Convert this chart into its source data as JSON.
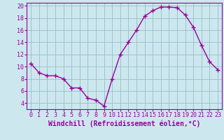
{
  "x": [
    0,
    1,
    2,
    3,
    4,
    5,
    6,
    7,
    8,
    9,
    10,
    11,
    12,
    13,
    14,
    15,
    16,
    17,
    18,
    19,
    20,
    21,
    22,
    23
  ],
  "y": [
    10.5,
    9.0,
    8.5,
    8.5,
    8.0,
    6.5,
    6.5,
    4.8,
    4.5,
    3.5,
    8.0,
    12.0,
    14.0,
    16.0,
    18.3,
    19.2,
    19.8,
    19.8,
    19.7,
    18.5,
    16.5,
    13.5,
    10.8,
    9.5
  ],
  "line_color": "#990099",
  "marker": "+",
  "marker_size": 4,
  "bg_color": "#cce8ee",
  "grid_color": "#99bbcc",
  "xlabel": "Windchill (Refroidissement éolien,°C)",
  "xlabel_color": "#990099",
  "tick_color": "#990099",
  "spine_color": "#990099",
  "ylim": [
    3.0,
    20.5
  ],
  "xlim": [
    -0.5,
    23.5
  ],
  "yticks": [
    4,
    6,
    8,
    10,
    12,
    14,
    16,
    18,
    20
  ],
  "xticks": [
    0,
    1,
    2,
    3,
    4,
    5,
    6,
    7,
    8,
    9,
    10,
    11,
    12,
    13,
    14,
    15,
    16,
    17,
    18,
    19,
    20,
    21,
    22,
    23
  ],
  "xlabel_fontsize": 7.0,
  "tick_fontsize": 6.0,
  "linewidth": 1.0,
  "markeredgewidth": 1.0
}
